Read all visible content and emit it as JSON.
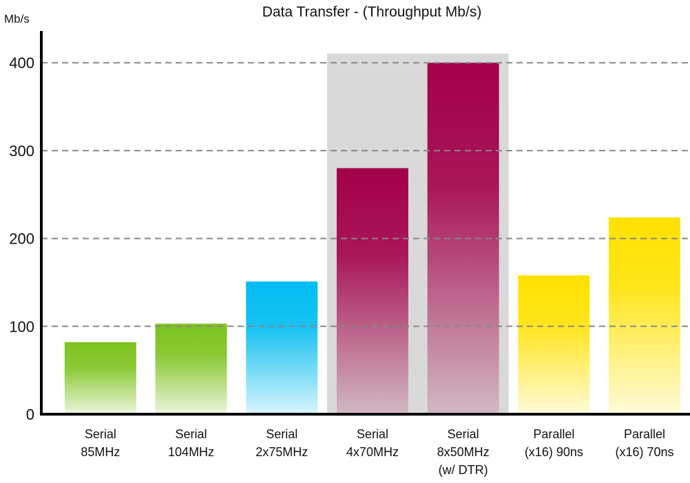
{
  "chart_data": {
    "type": "bar",
    "title": "Data Transfer - (Throughput Mb/s)",
    "ylabel": "Mb/s",
    "xlabel": "",
    "ylim": [
      0,
      430
    ],
    "yticks": [
      0,
      100,
      200,
      300,
      400
    ],
    "grid": true,
    "categories": [
      [
        "Serial",
        "85MHz"
      ],
      [
        "Serial",
        "104MHz"
      ],
      [
        "Serial",
        "2x75MHz"
      ],
      [
        "Serial",
        "4x70MHz"
      ],
      [
        "Serial",
        "8x50MHz",
        "(w/ DTR)"
      ],
      [
        "Parallel",
        "(x16) 90ns"
      ],
      [
        "Parallel",
        "(x16) 70ns"
      ]
    ],
    "values": [
      82,
      103,
      151,
      280,
      400,
      158,
      224
    ],
    "colors": [
      "#7dc31e",
      "#7dc31e",
      "#00bcf2",
      "#a3004a",
      "#a3004a",
      "#ffe200",
      "#ffe200"
    ],
    "highlight_categories": [
      3,
      4
    ],
    "highlight_color": "#d9d9d9",
    "gridline_color": "#888888"
  }
}
